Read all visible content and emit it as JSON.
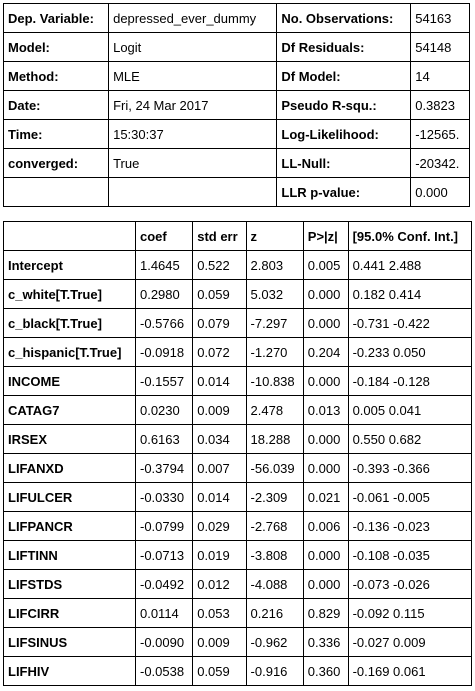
{
  "summary": [
    [
      "Dep. Variable:",
      "depressed_ever_dummy",
      "No. Observations:",
      "54163"
    ],
    [
      "Model:",
      "Logit",
      "Df Residuals:",
      "54148"
    ],
    [
      "Method:",
      "MLE",
      "Df Model:",
      "14"
    ],
    [
      "Date:",
      "Fri, 24 Mar 2017",
      "Pseudo R-squ.:",
      "0.3823"
    ],
    [
      "Time:",
      "15:30:37",
      "Log-Likelihood:",
      "-12565."
    ],
    [
      "converged:",
      "True",
      "LL-Null:",
      "-20342."
    ],
    [
      "",
      "",
      "LLR p-value:",
      "0.000"
    ]
  ],
  "coef_table": {
    "headers": [
      "",
      "coef",
      "std err",
      "z",
      "P>|z|",
      "[95.0% Conf. Int.]"
    ],
    "rows": [
      [
        "Intercept",
        "1.4645",
        "0.522",
        "2.803",
        "0.005",
        "0.441 2.488"
      ],
      [
        "c_white[T.True]",
        "0.2980",
        "0.059",
        "5.032",
        "0.000",
        "0.182 0.414"
      ],
      [
        "c_black[T.True]",
        "-0.5766",
        "0.079",
        "-7.297",
        "0.000",
        "-0.731 -0.422"
      ],
      [
        "c_hispanic[T.True]",
        "-0.0918",
        "0.072",
        "-1.270",
        "0.204",
        "-0.233 0.050"
      ],
      [
        "INCOME",
        "-0.1557",
        "0.014",
        "-10.838",
        "0.000",
        "-0.184 -0.128"
      ],
      [
        "CATAG7",
        "0.0230",
        "0.009",
        "2.478",
        "0.013",
        "0.005 0.041"
      ],
      [
        "IRSEX",
        "0.6163",
        "0.034",
        "18.288",
        "0.000",
        "0.550 0.682"
      ],
      [
        "LIFANXD",
        "-0.3794",
        "0.007",
        "-56.039",
        "0.000",
        "-0.393 -0.366"
      ],
      [
        "LIFULCER",
        "-0.0330",
        "0.014",
        "-2.309",
        "0.021",
        "-0.061 -0.005"
      ],
      [
        "LIFPANCR",
        "-0.0799",
        "0.029",
        "-2.768",
        "0.006",
        "-0.136 -0.023"
      ],
      [
        "LIFTINN",
        "-0.0713",
        "0.019",
        "-3.808",
        "0.000",
        "-0.108 -0.035"
      ],
      [
        "LIFSTDS",
        "-0.0492",
        "0.012",
        "-4.088",
        "0.000",
        "-0.073 -0.026"
      ],
      [
        "LIFCIRR",
        "0.0114",
        "0.053",
        "0.216",
        "0.829",
        "-0.092 0.115"
      ],
      [
        "LIFSINUS",
        "-0.0090",
        "0.009",
        "-0.962",
        "0.336",
        "-0.027 0.009"
      ],
      [
        "LIFHIV",
        "-0.0538",
        "0.059",
        "-0.916",
        "0.360",
        "-0.169 0.061"
      ]
    ]
  }
}
